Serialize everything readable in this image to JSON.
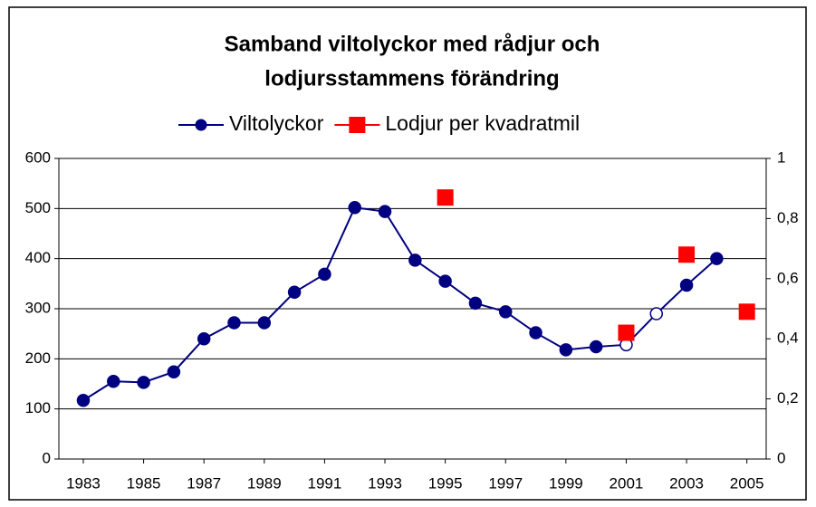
{
  "chart_data": {
    "type": "line",
    "title": [
      "Samband viltolyckor med rådjur och",
      "lodjursstammens förändring"
    ],
    "x": [
      1983,
      1984,
      1985,
      1986,
      1987,
      1988,
      1989,
      1990,
      1991,
      1992,
      1993,
      1994,
      1995,
      1996,
      1997,
      1998,
      1999,
      2000,
      2001,
      2002,
      2003,
      2004,
      2005
    ],
    "series": [
      {
        "name": "Viltolyckor",
        "color": "#000080",
        "marker": "circle",
        "line": true,
        "hollow_points": [
          18,
          19
        ],
        "values": [
          117,
          155,
          153,
          174,
          240,
          272,
          272,
          333,
          369,
          502,
          494,
          397,
          355,
          311,
          294,
          252,
          218,
          224,
          228,
          290,
          347,
          400,
          null
        ]
      },
      {
        "name": "Lodjur per kvadratmil",
        "color": "#ff0000",
        "marker": "square",
        "line": false,
        "axis": "y2",
        "values": [
          null,
          null,
          null,
          null,
          null,
          null,
          null,
          null,
          null,
          null,
          null,
          null,
          0.87,
          null,
          null,
          null,
          null,
          null,
          0.42,
          null,
          0.68,
          null,
          0.49
        ]
      }
    ],
    "xlim": [
      1982.19,
      2005.64
    ],
    "xticks": [
      1983,
      1985,
      1987,
      1989,
      1991,
      1993,
      1995,
      1997,
      1999,
      2001,
      2003,
      2005
    ],
    "ylim": [
      0,
      600
    ],
    "yticks": [
      0,
      100,
      200,
      300,
      400,
      500,
      600
    ],
    "y2lim": [
      0,
      1
    ],
    "y2ticks": [
      0,
      {
        "value": 0.2,
        "label": "0,2"
      },
      {
        "value": 0.4,
        "label": "0,4"
      },
      {
        "value": 0.6,
        "label": "0,6"
      },
      {
        "value": 0.8,
        "label": "0,8"
      },
      1
    ],
    "grid": true,
    "legend": "top"
  }
}
